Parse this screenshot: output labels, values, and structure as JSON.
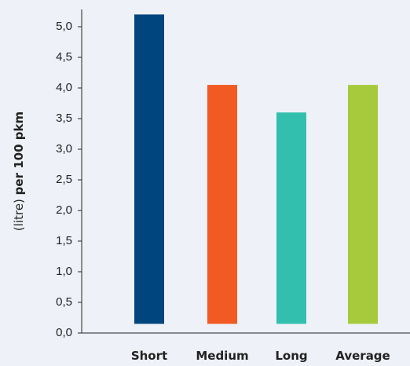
{
  "chart_data": {
    "type": "bar",
    "categories": [
      "Short",
      "Medium",
      "Long",
      "Average"
    ],
    "values": [
      5.2,
      4.05,
      3.6,
      4.05
    ],
    "colors": [
      "#00457e",
      "#f15a22",
      "#33bfad",
      "#a6ca3b"
    ],
    "ylabel_prefix": "(litre) ",
    "ylabel_bold": "per 100 pkm",
    "ylim": [
      0,
      5.2
    ],
    "yticks": [
      "0,0",
      "0,5",
      "1,0",
      "1,5",
      "2,0",
      "2,5",
      "3,0",
      "3,5",
      "4,0",
      "4,5",
      "5,0"
    ],
    "grid": false,
    "legend": "none"
  }
}
